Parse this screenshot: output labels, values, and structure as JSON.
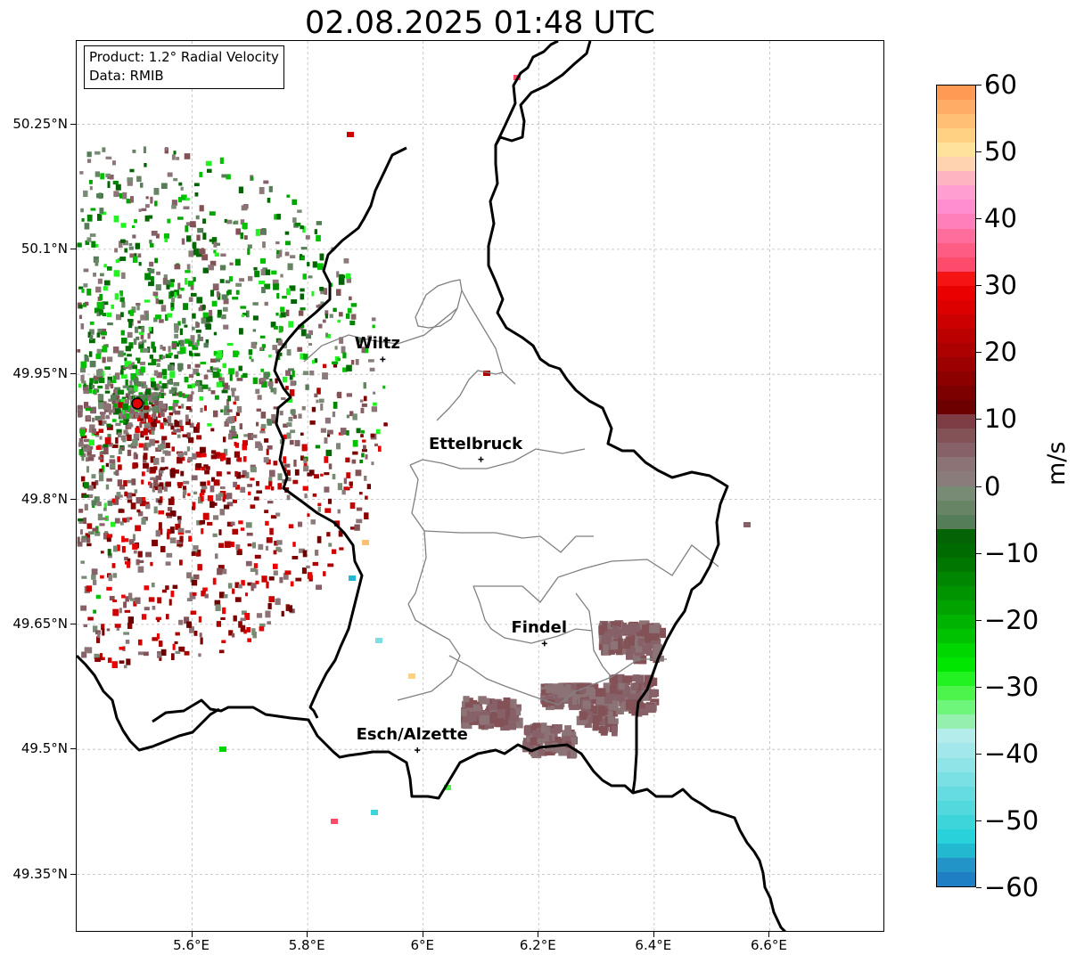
{
  "title": "02.08.2025 01:48 UTC",
  "info_box": {
    "product": "Product: 1.2° Radial Velocity",
    "data": "Data: RMIB"
  },
  "axes": {
    "lat_ticks": [
      "50.25°N",
      "50.1°N",
      "49.95°N",
      "49.8°N",
      "49.65°N",
      "49.5°N",
      "49.35°N"
    ],
    "lon_ticks": [
      "5.6°E",
      "5.8°E",
      "6°E",
      "6.2°E",
      "6.4°E",
      "6.6°E"
    ],
    "grid": true,
    "grid_style": "dashed gray"
  },
  "cities": [
    {
      "name": "Wiltz",
      "lat": 49.968,
      "lon": 5.93
    },
    {
      "name": "Ettelbruck",
      "lat": 49.848,
      "lon": 6.1
    },
    {
      "name": "Findel",
      "lat": 49.627,
      "lon": 6.21
    },
    {
      "name": "Esch/Alzette",
      "lat": 49.499,
      "lon": 5.99
    }
  ],
  "radar_site": {
    "lat": 49.915,
    "lon": 5.505,
    "marker_color": "#e00000"
  },
  "colorbar": {
    "label": "m/s",
    "min": -60,
    "max": 60,
    "tick_labels": [
      "60",
      "50",
      "40",
      "30",
      "20",
      "10",
      "0",
      "−10",
      "−20",
      "−30",
      "−40",
      "−50",
      "−60"
    ],
    "colors_top_to_bottom": [
      "#ff9a55",
      "#ffac66",
      "#ffbf75",
      "#ffd283",
      "#ffe39a",
      "#ffd3b0",
      "#ffb4c2",
      "#ff9ed1",
      "#ff8ecf",
      "#ff7fbb",
      "#ff6d9c",
      "#ff5c84",
      "#ff4b6b",
      "#f41414",
      "#ea0000",
      "#dc0000",
      "#cc0000",
      "#bb0000",
      "#ad0000",
      "#9c0000",
      "#8d0000",
      "#7c0000",
      "#6c0000",
      "#7e3c44",
      "#835257",
      "#876168",
      "#8c7376",
      "#8a7c7a",
      "#788b74",
      "#678464",
      "#557d58",
      "#046304",
      "#006b00",
      "#007800",
      "#008600",
      "#009400",
      "#00a300",
      "#00b300",
      "#00c200",
      "#00d600",
      "#00e600",
      "#22f222",
      "#4cf44c",
      "#6ef67a",
      "#95f0b0",
      "#b4ecec",
      "#a2e8ea",
      "#8ee4e6",
      "#7ae0e3",
      "#65dde0",
      "#52d9de",
      "#3cd5da",
      "#28d2da",
      "#22b8d0",
      "#2294c8",
      "#1f7fc5"
    ]
  },
  "colors": {
    "border_country": "#000000",
    "border_canton": "#808080",
    "grid": "#bbbbbb"
  }
}
